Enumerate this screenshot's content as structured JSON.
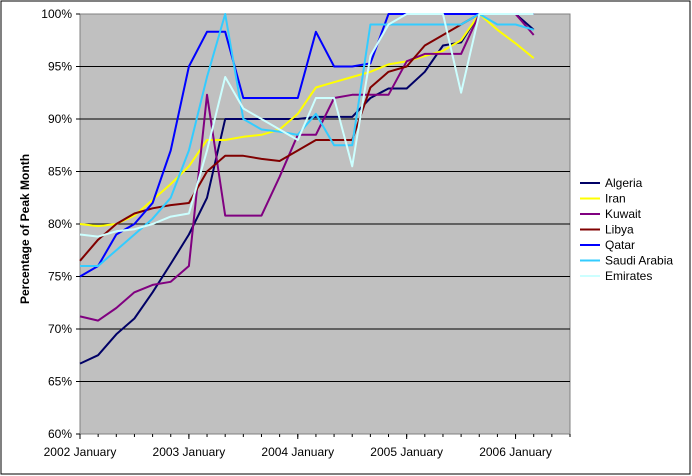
{
  "chart_data": {
    "type": "line",
    "title": "",
    "xlabel": "",
    "ylabel": "Percentage of Peak Month",
    "ylim": [
      0.6,
      1.0
    ],
    "yticks": [
      "60%",
      "65%",
      "70%",
      "75%",
      "80%",
      "85%",
      "90%",
      "95%",
      "100%"
    ],
    "xticks": [
      "2002 January",
      "2003 January",
      "2004 January",
      "2005 January",
      "2006 January"
    ],
    "xlim": [
      "2002-01",
      "2006-07"
    ],
    "grid": true,
    "legend": "right",
    "plot_background": "#c0c0c0",
    "x": [
      "2002-01",
      "2002-03",
      "2002-05",
      "2002-07",
      "2002-09",
      "2002-11",
      "2003-01",
      "2003-03",
      "2003-05",
      "2003-07",
      "2003-09",
      "2003-11",
      "2004-01",
      "2004-03",
      "2004-05",
      "2004-07",
      "2004-09",
      "2004-11",
      "2005-01",
      "2005-03",
      "2005-05",
      "2005-07",
      "2005-09",
      "2005-11",
      "2006-01",
      "2006-03"
    ],
    "series": [
      {
        "name": "Algeria",
        "color": "#000066",
        "values": [
          0.667,
          0.675,
          0.695,
          0.71,
          0.735,
          0.762,
          0.79,
          0.825,
          0.9,
          0.9,
          0.9,
          0.9,
          0.9,
          0.902,
          0.902,
          0.902,
          0.92,
          0.929,
          0.929,
          0.945,
          0.97,
          0.973,
          1.0,
          1.0,
          1.0,
          0.985
        ]
      },
      {
        "name": "Iran",
        "color": "#ffff00",
        "values": [
          0.8,
          0.798,
          0.8,
          0.808,
          0.823,
          0.838,
          0.855,
          0.88,
          0.88,
          0.883,
          0.885,
          0.89,
          0.905,
          0.93,
          0.935,
          0.94,
          0.945,
          0.952,
          0.955,
          0.96,
          0.965,
          0.975,
          1.0,
          0.985,
          0.972,
          0.958
        ]
      },
      {
        "name": "Kuwait",
        "color": "#800080",
        "values": [
          0.712,
          0.708,
          0.72,
          0.735,
          0.742,
          0.745,
          0.76,
          0.923,
          0.808,
          0.808,
          0.808,
          0.845,
          0.885,
          0.885,
          0.92,
          0.923,
          0.923,
          0.923,
          0.955,
          0.962,
          0.962,
          0.962,
          1.0,
          1.0,
          1.0,
          0.98
        ]
      },
      {
        "name": "Libya",
        "color": "#800000",
        "values": [
          0.765,
          0.785,
          0.8,
          0.81,
          0.815,
          0.818,
          0.82,
          0.85,
          0.865,
          0.865,
          0.862,
          0.86,
          0.87,
          0.88,
          0.88,
          0.88,
          0.93,
          0.945,
          0.95,
          0.97,
          0.98,
          0.99,
          1.0,
          1.0,
          1.0,
          1.0
        ]
      },
      {
        "name": "Qatar",
        "color": "#0000ff",
        "values": [
          0.75,
          0.76,
          0.79,
          0.8,
          0.82,
          0.87,
          0.95,
          0.983,
          0.983,
          0.92,
          0.92,
          0.92,
          0.92,
          0.983,
          0.95,
          0.95,
          0.953,
          1.0,
          1.0,
          1.0,
          1.0,
          1.0,
          1.0,
          1.0,
          1.0,
          1.0
        ]
      },
      {
        "name": "Saudi Arabia",
        "color": "#33ccff",
        "values": [
          0.76,
          0.76,
          0.775,
          0.79,
          0.805,
          0.825,
          0.87,
          0.94,
          1.0,
          0.9,
          0.89,
          0.888,
          0.885,
          0.905,
          0.875,
          0.875,
          0.99,
          0.99,
          0.99,
          0.99,
          0.99,
          0.99,
          1.0,
          0.99,
          0.99,
          0.985
        ]
      },
      {
        "name": "Emirates",
        "color": "#ccffff",
        "values": [
          0.79,
          0.788,
          0.793,
          0.795,
          0.8,
          0.807,
          0.81,
          0.87,
          0.94,
          0.91,
          0.9,
          0.89,
          0.88,
          0.92,
          0.92,
          0.855,
          0.96,
          0.99,
          1.0,
          1.0,
          1.0,
          0.925,
          1.0,
          1.0,
          1.0,
          1.0
        ]
      }
    ]
  }
}
